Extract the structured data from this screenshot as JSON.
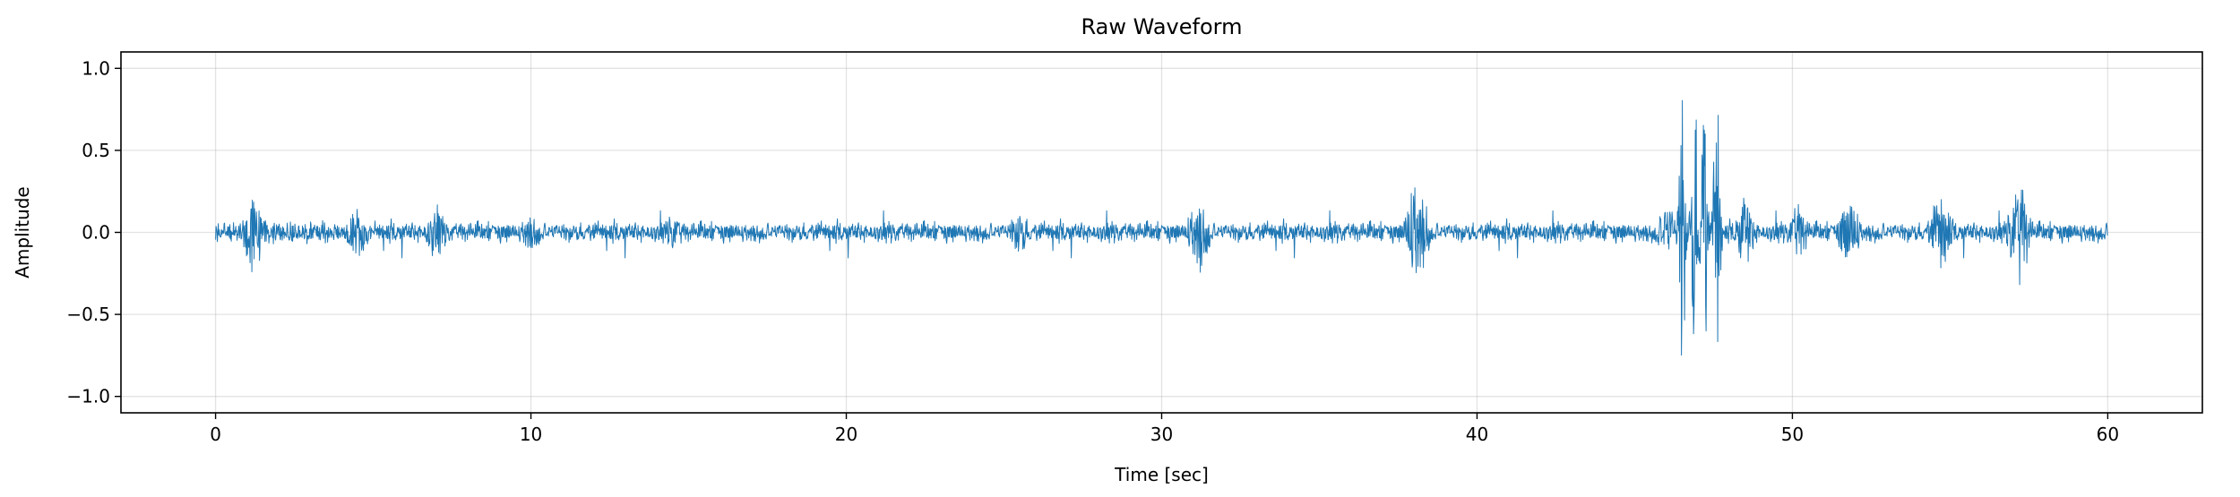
{
  "chart_data": {
    "type": "line",
    "title": "Raw Waveform",
    "xlabel": "Time [sec]",
    "ylabel": "Amplitude",
    "xlim": [
      -3,
      63
    ],
    "ylim": [
      -1.1,
      1.1
    ],
    "x_ticks": [
      0,
      10,
      20,
      30,
      40,
      50,
      60
    ],
    "x_tick_labels": [
      "0",
      "10",
      "20",
      "30",
      "40",
      "50",
      "60"
    ],
    "y_ticks": [
      -1.0,
      -0.5,
      0.0,
      0.5,
      1.0
    ],
    "y_tick_labels": [
      "−1.0",
      "−0.5",
      "0.0",
      "0.5",
      "1.0"
    ],
    "grid": true,
    "legend": "none",
    "series": [
      {
        "color": "#1f77b4",
        "duration": 60,
        "baseline_amplitude": 0.05,
        "bursts": [
          {
            "t": 1.2,
            "amp": 0.27
          },
          {
            "t": 4.5,
            "amp": 0.2
          },
          {
            "t": 7.0,
            "amp": 0.18
          },
          {
            "t": 10.0,
            "amp": 0.15
          },
          {
            "t": 14.5,
            "amp": 0.12
          },
          {
            "t": 25.5,
            "amp": 0.15
          },
          {
            "t": 31.2,
            "amp": 0.28
          },
          {
            "t": 38.1,
            "amp": 0.4
          },
          {
            "t": 46.0,
            "amp": 0.2
          },
          {
            "t": 46.5,
            "amp": 1.0
          },
          {
            "t": 46.9,
            "amp": 1.0
          },
          {
            "t": 47.2,
            "amp": 1.0
          },
          {
            "t": 47.6,
            "amp": 1.0
          },
          {
            "t": 48.5,
            "amp": 0.22
          },
          {
            "t": 50.2,
            "amp": 0.2
          },
          {
            "t": 51.8,
            "amp": 0.25
          },
          {
            "t": 54.7,
            "amp": 0.27
          },
          {
            "t": 57.2,
            "amp": 0.34
          }
        ]
      }
    ]
  }
}
